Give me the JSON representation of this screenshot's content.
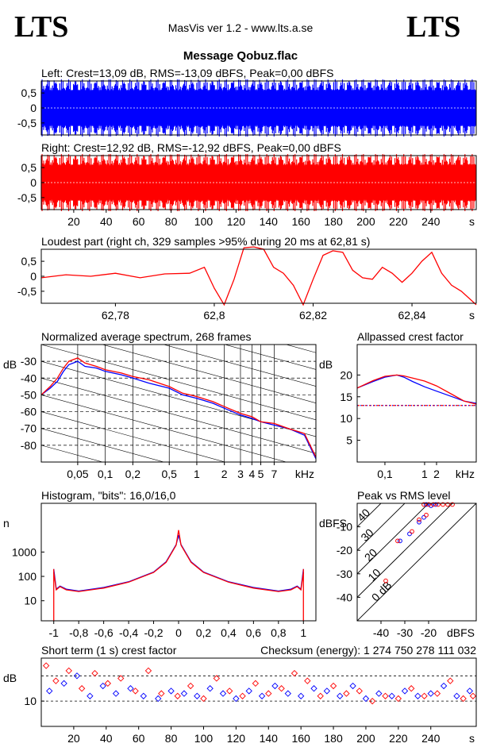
{
  "header": {
    "logo_left": "LTS",
    "logo_right": "LTS",
    "version": "MasVis ver 1.2 - www.lts.a.se",
    "file_title": "Message Qobuz.flac"
  },
  "chart_data": [
    {
      "id": "left_waveform",
      "type": "area",
      "title": "Left: Crest=13,09 dB, RMS=-13,09 dBFS, Peak=0,00 dBFS",
      "color": "#0000ff",
      "ylim": [
        -0.9,
        0.9
      ],
      "xlim": [
        0,
        268
      ],
      "y_ticks": [
        "0,5",
        "0",
        "-0,5"
      ],
      "y_tick_values": [
        0.5,
        0,
        -0.5
      ],
      "envelope": {
        "upper": 0.95,
        "lower": -0.95
      }
    },
    {
      "id": "right_waveform",
      "type": "area",
      "title": "Right: Crest=12,92 dB, RMS=-12,92 dBFS, Peak=0,00 dBFS",
      "color": "#ff0000",
      "ylim": [
        -0.9,
        0.9
      ],
      "xlim": [
        0,
        268
      ],
      "y_ticks": [
        "0,5",
        "0",
        "-0,5"
      ],
      "y_tick_values": [
        0.5,
        0,
        -0.5
      ],
      "x_ticks": [
        "20",
        "40",
        "60",
        "80",
        "100",
        "120",
        "140",
        "160",
        "180",
        "200",
        "220",
        "240"
      ],
      "x_tick_values": [
        20,
        40,
        60,
        80,
        100,
        120,
        140,
        160,
        180,
        200,
        220,
        240
      ],
      "x_unit": "s",
      "envelope": {
        "upper": 0.95,
        "lower": -0.95
      }
    },
    {
      "id": "loudest_part",
      "type": "line",
      "title": "Loudest part (right ch, 329 samples >95% during 20 ms at 62,81 s)",
      "color": "#ff0000",
      "ylim": [
        -0.9,
        0.9
      ],
      "xlim": [
        62.765,
        62.853
      ],
      "y_ticks": [
        "0,5",
        "0",
        "-0,5"
      ],
      "y_tick_values": [
        0.5,
        0,
        -0.5
      ],
      "x_ticks": [
        "62,78",
        "62,8",
        "62,82",
        "62,84"
      ],
      "x_tick_values": [
        62.78,
        62.8,
        62.82,
        62.84
      ],
      "x_unit": "s",
      "x": [
        62.765,
        62.77,
        62.775,
        62.78,
        62.785,
        62.79,
        62.795,
        62.798,
        62.8,
        62.802,
        62.804,
        62.806,
        62.808,
        62.81,
        62.812,
        62.814,
        62.816,
        62.818,
        62.82,
        62.822,
        62.824,
        62.826,
        62.828,
        62.83,
        62.832,
        62.834,
        62.836,
        62.838,
        62.84,
        62.842,
        62.844,
        62.846,
        62.848,
        62.85,
        62.853
      ],
      "y": [
        -0.05,
        0.05,
        0.0,
        0.1,
        -0.05,
        0.08,
        0.1,
        0.3,
        -0.4,
        -0.95,
        -0.1,
        0.95,
        0.98,
        0.9,
        0.3,
        0.1,
        -0.3,
        -0.95,
        -0.1,
        0.7,
        0.85,
        0.8,
        0.2,
        -0.05,
        -0.1,
        0.3,
        0.1,
        -0.2,
        0.1,
        0.5,
        0.8,
        0.1,
        -0.3,
        -0.5,
        -0.95
      ]
    },
    {
      "id": "spectrum",
      "type": "line",
      "title": "Normalized average spectrum, 268 frames",
      "ylabel": "dB",
      "x_unit": "kHz",
      "xscale": "log",
      "xlim": [
        0.02,
        20
      ],
      "ylim": [
        -90,
        -20
      ],
      "y_ticks": [
        "-30",
        "-40",
        "-50",
        "-60",
        "-70",
        "-80"
      ],
      "y_tick_values": [
        -30,
        -40,
        -50,
        -60,
        -70,
        -80
      ],
      "x_ticks": [
        "0,05",
        "0,1",
        "0,2",
        "0,5",
        "1",
        "2",
        "3",
        "4",
        "5",
        "7"
      ],
      "x_tick_values": [
        0.05,
        0.1,
        0.2,
        0.5,
        1,
        2,
        3,
        4,
        5,
        7
      ],
      "series": [
        {
          "color": "#0000ff",
          "x": [
            0.02,
            0.025,
            0.03,
            0.035,
            0.04,
            0.05,
            0.06,
            0.08,
            0.1,
            0.15,
            0.2,
            0.3,
            0.5,
            0.7,
            1,
            1.5,
            2,
            3,
            4,
            5,
            7,
            10,
            15,
            20
          ],
          "y": [
            -50,
            -46,
            -42,
            -36,
            -32,
            -30,
            -33,
            -34,
            -36,
            -38,
            -40,
            -43,
            -46,
            -50,
            -52,
            -55,
            -58,
            -62,
            -64,
            -66,
            -68,
            -70,
            -74,
            -88
          ]
        },
        {
          "color": "#ff0000",
          "x": [
            0.02,
            0.025,
            0.03,
            0.035,
            0.04,
            0.05,
            0.06,
            0.08,
            0.1,
            0.15,
            0.2,
            0.3,
            0.5,
            0.7,
            1,
            1.5,
            2,
            3,
            4,
            5,
            7,
            10,
            15,
            20
          ],
          "y": [
            -50,
            -45,
            -40,
            -34,
            -30,
            -28,
            -31,
            -33,
            -35,
            -37,
            -39,
            -41,
            -45,
            -49,
            -51,
            -54,
            -57,
            -61,
            -63,
            -66,
            -67,
            -70,
            -73,
            -87
          ]
        }
      ]
    },
    {
      "id": "allpassed_crest",
      "type": "line",
      "title": "Allpassed crest factor",
      "ylabel": "dB",
      "x_unit": "kHz",
      "xscale": "log",
      "xlim": [
        0.02,
        20
      ],
      "ylim": [
        0,
        27
      ],
      "y_ticks": [
        "20",
        "15",
        "10",
        "5"
      ],
      "y_tick_values": [
        20,
        15,
        10,
        5
      ],
      "x_ticks": [
        "0,1",
        "1",
        "2"
      ],
      "x_tick_values": [
        0.1,
        1,
        2
      ],
      "reference_line": 13,
      "series": [
        {
          "color": "#0000ff",
          "x": [
            0.02,
            0.05,
            0.1,
            0.2,
            0.3,
            0.5,
            1,
            2,
            5,
            10,
            20
          ],
          "y": [
            17,
            18.5,
            19.5,
            20,
            19.5,
            18.5,
            17.3,
            16.3,
            15,
            14,
            13.5
          ]
        },
        {
          "color": "#ff0000",
          "x": [
            0.02,
            0.05,
            0.1,
            0.2,
            0.3,
            0.5,
            1,
            2,
            5,
            10,
            20
          ],
          "y": [
            17,
            18.7,
            19.7,
            20,
            19.8,
            19.3,
            18.6,
            17.5,
            15.5,
            14,
            13.3
          ]
        }
      ]
    },
    {
      "id": "histogram",
      "type": "line",
      "title": "Histogram, \"bits\": 16,0/16,0",
      "ylabel": "n",
      "yscale": "log",
      "xlim": [
        -1.1,
        1.1
      ],
      "ylim": [
        1.5,
        100000
      ],
      "y_ticks": [
        "1000",
        "100",
        "10"
      ],
      "y_tick_values": [
        1000,
        100,
        10
      ],
      "x_ticks": [
        "-1",
        "-0,8",
        "-0,6",
        "-0,4",
        "-0,2",
        "0",
        "0,2",
        "0,4",
        "0,6",
        "0,8",
        "1"
      ],
      "x_tick_values": [
        -1,
        -0.8,
        -0.6,
        -0.4,
        -0.2,
        0,
        0.2,
        0.4,
        0.6,
        0.8,
        1
      ],
      "series": [
        {
          "color": "#0000ff",
          "x": [
            -1,
            -0.98,
            -0.95,
            -0.9,
            -0.8,
            -0.6,
            -0.4,
            -0.2,
            -0.1,
            -0.02,
            0,
            0.02,
            0.1,
            0.2,
            0.4,
            0.6,
            0.8,
            0.9,
            0.95,
            0.98,
            1
          ],
          "y": [
            200,
            30,
            40,
            30,
            25,
            35,
            60,
            150,
            400,
            2000,
            5000,
            2000,
            400,
            150,
            60,
            35,
            25,
            30,
            40,
            30,
            200
          ]
        },
        {
          "color": "#ff0000",
          "x": [
            -1,
            -0.98,
            -0.95,
            -0.9,
            -0.8,
            -0.6,
            -0.4,
            -0.2,
            -0.1,
            -0.02,
            0,
            0.02,
            0.1,
            0.2,
            0.4,
            0.6,
            0.8,
            0.9,
            0.95,
            0.98,
            1
          ],
          "y": [
            150,
            28,
            38,
            28,
            24,
            33,
            58,
            145,
            380,
            1900,
            8000,
            1900,
            380,
            145,
            58,
            33,
            24,
            28,
            38,
            28,
            150
          ]
        }
      ]
    },
    {
      "id": "peak_vs_rms",
      "type": "scatter",
      "title": "Peak vs RMS level",
      "ylabel": "dBFS",
      "x_unit": "dBFS",
      "xlim": [
        -50,
        0
      ],
      "ylim": [
        -50,
        0
      ],
      "y_ticks": [
        "-10",
        "-20",
        "-30",
        "-40"
      ],
      "y_tick_values": [
        -10,
        -20,
        -30,
        -40
      ],
      "x_ticks": [
        "-40",
        "-30",
        "-20"
      ],
      "x_tick_values": [
        -40,
        -30,
        -20
      ],
      "crest_lines": [
        "0 dB",
        "10",
        "20",
        "30",
        "40"
      ],
      "crest_line_values": [
        0,
        10,
        20,
        30,
        40
      ],
      "series": [
        {
          "color": "#0000ff",
          "x": [
            -21,
            -19,
            -17,
            -24,
            -22,
            -28,
            -32
          ],
          "y": [
            -0.5,
            -1,
            -0.5,
            -8,
            -6,
            -13,
            -16
          ]
        },
        {
          "color": "#ff0000",
          "x": [
            -22,
            -20,
            -18,
            -16,
            -14,
            -12,
            -10,
            -24,
            -21,
            -27,
            -33,
            -38
          ],
          "y": [
            -0.5,
            -0.5,
            -0.5,
            -0.5,
            -0.5,
            -0.5,
            -0.5,
            -7,
            -5,
            -12,
            -16,
            -33
          ]
        }
      ]
    },
    {
      "id": "short_term_crest",
      "type": "scatter",
      "title": "Short term (1 s) crest factor",
      "subtitle": "Checksum (energy): 1 274 750 278 111 032",
      "ylabel": "dB",
      "xlim": [
        0,
        268
      ],
      "ylim": [
        0,
        27
      ],
      "y_ticks": [
        "10"
      ],
      "y_tick_values": [
        10
      ],
      "dashed_lines": [
        10,
        20
      ],
      "x_ticks": [
        "20",
        "40",
        "60",
        "80",
        "100",
        "120",
        "140",
        "160",
        "180",
        "200",
        "220",
        "240"
      ],
      "x_tick_values": [
        20,
        40,
        60,
        80,
        100,
        120,
        140,
        160,
        180,
        200,
        220,
        240
      ],
      "x_unit": "s",
      "series": [
        {
          "color": "#0000ff",
          "x": [
            5,
            14,
            22,
            30,
            38,
            46,
            55,
            63,
            72,
            80,
            88,
            96,
            104,
            112,
            120,
            128,
            136,
            144,
            152,
            160,
            168,
            176,
            184,
            192,
            200,
            208,
            216,
            224,
            232,
            240,
            248,
            256,
            264
          ],
          "y": [
            14,
            17,
            20,
            12,
            16,
            13,
            15,
            12,
            11,
            14,
            13,
            12,
            15,
            13,
            11,
            14,
            12,
            16,
            13,
            12,
            15,
            14,
            12,
            16,
            11,
            13,
            12,
            14,
            12,
            13,
            16,
            12,
            14
          ]
        },
        {
          "color": "#ff0000",
          "x": [
            3,
            9,
            17,
            25,
            33,
            41,
            49,
            58,
            66,
            74,
            84,
            92,
            100,
            108,
            116,
            124,
            132,
            140,
            148,
            156,
            164,
            172,
            180,
            188,
            196,
            204,
            212,
            220,
            228,
            236,
            244,
            252,
            260,
            266
          ],
          "y": [
            24,
            18,
            22,
            15,
            21,
            17,
            19,
            14,
            22,
            13,
            12,
            16,
            11,
            19,
            14,
            12,
            17,
            13,
            15,
            21,
            18,
            12,
            16,
            13,
            14,
            10,
            12,
            11,
            15,
            12,
            13,
            18,
            11,
            12
          ]
        }
      ]
    }
  ]
}
